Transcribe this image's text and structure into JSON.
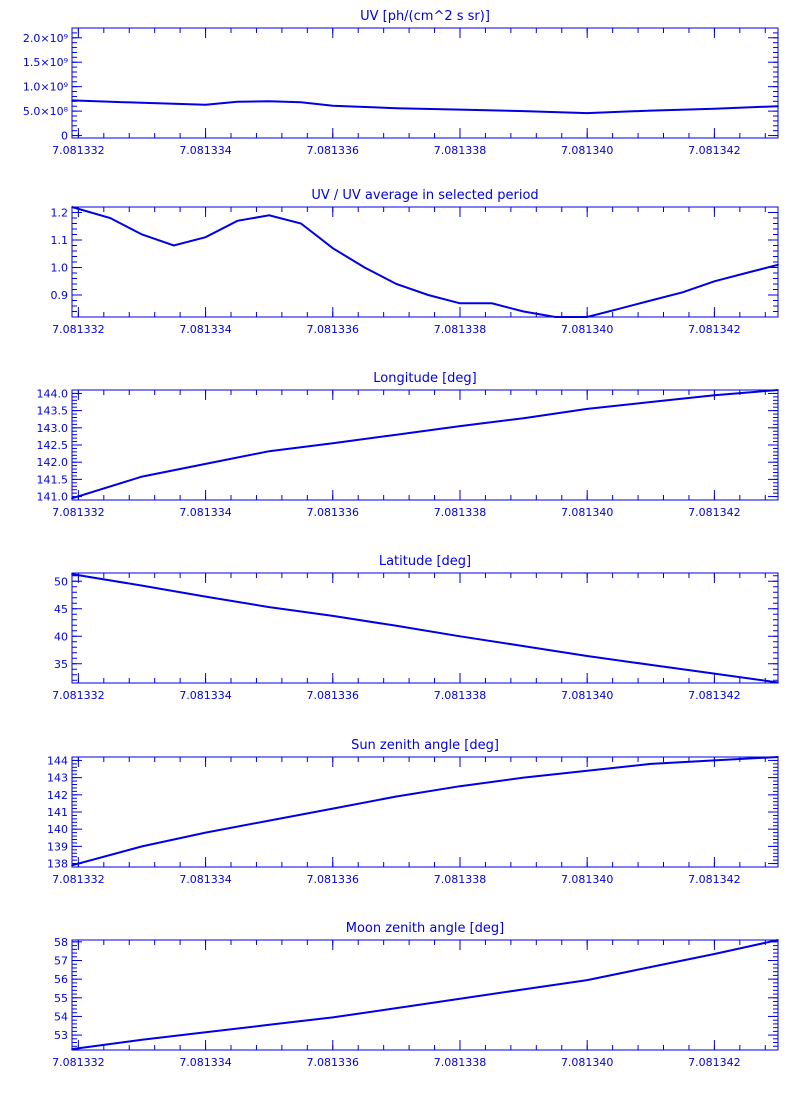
{
  "colors": {
    "ink": "#0000e6",
    "background": "#ffffff"
  },
  "chart_data": [
    {
      "type": "line",
      "title": "UV [ph/(cm^2 s sr)]",
      "y_scale": "×10^8",
      "x_ticks": [
        "7.081332",
        "7.081334",
        "7.081336",
        "7.081338",
        "7.081340",
        "7.081342"
      ],
      "x_tick_values": [
        7.081332,
        7.081334,
        7.081336,
        7.081338,
        7.08134,
        7.081342
      ],
      "xlim": [
        7.0813319,
        7.081343
      ],
      "y_ticks": [
        "0",
        "5.0×10⁸",
        "1.0×10⁹",
        "1.5×10⁹",
        "2.0×10⁹"
      ],
      "y_tick_values": [
        0,
        0.5,
        1.0,
        1.5,
        2.0
      ],
      "ylim": [
        -0.05,
        2.2
      ],
      "x": [
        7.0813319,
        7.081333,
        7.081334,
        7.0813345,
        7.081335,
        7.0813355,
        7.081336,
        7.081337,
        7.081338,
        7.081339,
        7.08134,
        7.081341,
        7.081342,
        7.081343
      ],
      "values": [
        0.72,
        0.67,
        0.63,
        0.69,
        0.7,
        0.68,
        0.61,
        0.56,
        0.53,
        0.5,
        0.46,
        0.51,
        0.55,
        0.6
      ]
    },
    {
      "type": "line",
      "title": "UV / UV average in selected period",
      "x_ticks": [
        "7.081332",
        "7.081334",
        "7.081336",
        "7.081338",
        "7.081340",
        "7.081342"
      ],
      "x_tick_values": [
        7.081332,
        7.081334,
        7.081336,
        7.081338,
        7.08134,
        7.081342
      ],
      "xlim": [
        7.0813319,
        7.081343
      ],
      "y_ticks": [
        "0.9",
        "1.0",
        "1.1",
        "1.2"
      ],
      "y_tick_values": [
        0.9,
        1.0,
        1.1,
        1.2
      ],
      "ylim": [
        0.82,
        1.22
      ],
      "x": [
        7.0813319,
        7.0813325,
        7.081333,
        7.0813335,
        7.081334,
        7.0813345,
        7.081335,
        7.0813355,
        7.081336,
        7.0813365,
        7.081337,
        7.0813375,
        7.081338,
        7.0813385,
        7.081339,
        7.0813395,
        7.08134,
        7.0813405,
        7.081341,
        7.0813415,
        7.081342,
        7.0813425,
        7.081343
      ],
      "values": [
        1.22,
        1.18,
        1.12,
        1.08,
        1.11,
        1.17,
        1.19,
        1.16,
        1.07,
        1.0,
        0.94,
        0.9,
        0.87,
        0.87,
        0.84,
        0.82,
        0.82,
        0.85,
        0.88,
        0.91,
        0.95,
        0.98,
        1.01
      ]
    },
    {
      "type": "line",
      "title": "Longitude [deg]",
      "x_ticks": [
        "7.081332",
        "7.081334",
        "7.081336",
        "7.081338",
        "7.081340",
        "7.081342"
      ],
      "x_tick_values": [
        7.081332,
        7.081334,
        7.081336,
        7.081338,
        7.08134,
        7.081342
      ],
      "xlim": [
        7.0813319,
        7.081343
      ],
      "y_ticks": [
        "141.0",
        "141.5",
        "142.0",
        "142.5",
        "143.0",
        "143.5",
        "144.0"
      ],
      "y_tick_values": [
        141.0,
        141.5,
        142.0,
        142.5,
        143.0,
        143.5,
        144.0
      ],
      "ylim": [
        140.9,
        144.1
      ],
      "x": [
        7.0813319,
        7.081333,
        7.081334,
        7.081335,
        7.081336,
        7.081337,
        7.081338,
        7.081339,
        7.08134,
        7.081341,
        7.081342,
        7.081343
      ],
      "values": [
        140.95,
        141.58,
        141.95,
        142.32,
        142.55,
        142.8,
        143.05,
        143.28,
        143.55,
        143.75,
        143.95,
        144.1
      ]
    },
    {
      "type": "line",
      "title": "Latitude [deg]",
      "x_ticks": [
        "7.081332",
        "7.081334",
        "7.081336",
        "7.081338",
        "7.081340",
        "7.081342"
      ],
      "x_tick_values": [
        7.081332,
        7.081334,
        7.081336,
        7.081338,
        7.08134,
        7.081342
      ],
      "xlim": [
        7.0813319,
        7.081343
      ],
      "y_ticks": [
        "35",
        "40",
        "45",
        "50"
      ],
      "y_tick_values": [
        35,
        40,
        45,
        50
      ],
      "ylim": [
        31.5,
        51.5
      ],
      "x": [
        7.0813319,
        7.081333,
        7.081334,
        7.081335,
        7.081336,
        7.081337,
        7.081338,
        7.081339,
        7.08134,
        7.081341,
        7.081342,
        7.081343
      ],
      "values": [
        51.3,
        49.2,
        47.2,
        45.3,
        43.7,
        41.9,
        40.0,
        38.2,
        36.4,
        34.8,
        33.2,
        31.6
      ]
    },
    {
      "type": "line",
      "title": "Sun zenith angle [deg]",
      "x_ticks": [
        "7.081332",
        "7.081334",
        "7.081336",
        "7.081338",
        "7.081340",
        "7.081342"
      ],
      "x_tick_values": [
        7.081332,
        7.081334,
        7.081336,
        7.081338,
        7.08134,
        7.081342
      ],
      "xlim": [
        7.0813319,
        7.081343
      ],
      "y_ticks": [
        "138",
        "139",
        "140",
        "141",
        "142",
        "143",
        "144"
      ],
      "y_tick_values": [
        138,
        139,
        140,
        141,
        142,
        143,
        144
      ],
      "ylim": [
        137.8,
        144.2
      ],
      "x": [
        7.0813319,
        7.081333,
        7.081334,
        7.081335,
        7.081336,
        7.081337,
        7.081338,
        7.081339,
        7.08134,
        7.081341,
        7.081342,
        7.081343
      ],
      "values": [
        137.9,
        139.0,
        139.8,
        140.5,
        141.2,
        141.9,
        142.5,
        143.0,
        143.4,
        143.8,
        144.0,
        144.2
      ]
    },
    {
      "type": "line",
      "title": "Moon zenith angle [deg]",
      "x_ticks": [
        "7.081332",
        "7.081334",
        "7.081336",
        "7.081338",
        "7.081340",
        "7.081342"
      ],
      "x_tick_values": [
        7.081332,
        7.081334,
        7.081336,
        7.081338,
        7.08134,
        7.081342
      ],
      "xlim": [
        7.0813319,
        7.081343
      ],
      "y_ticks": [
        "53",
        "54",
        "55",
        "56",
        "57",
        "58"
      ],
      "y_tick_values": [
        53,
        54,
        55,
        56,
        57,
        58
      ],
      "ylim": [
        52.2,
        58.1
      ],
      "x": [
        7.0813319,
        7.081333,
        7.081334,
        7.081335,
        7.081336,
        7.081337,
        7.081338,
        7.081339,
        7.08134,
        7.081341,
        7.081342,
        7.081343
      ],
      "values": [
        52.25,
        52.75,
        53.15,
        53.55,
        53.95,
        54.45,
        54.95,
        55.45,
        55.95,
        56.65,
        57.35,
        58.1
      ]
    }
  ]
}
